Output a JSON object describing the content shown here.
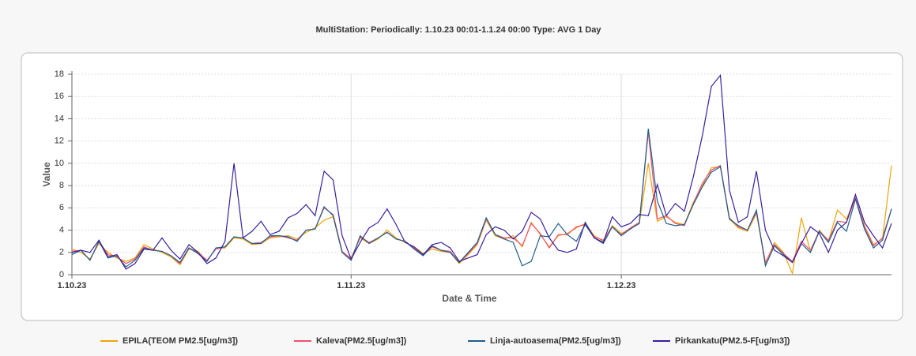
{
  "chart_data": {
    "type": "line",
    "title": "MultiStation:  Periodically: 1.10.23 00:01-1.1.24 00:00  Type: AVG 1 Day",
    "xlabel": "Date & Time",
    "ylabel": "Value",
    "x": [
      "2023-10-01",
      "2023-10-02",
      "2023-10-03",
      "2023-10-04",
      "2023-10-05",
      "2023-10-06",
      "2023-10-07",
      "2023-10-08",
      "2023-10-09",
      "2023-10-10",
      "2023-10-11",
      "2023-10-12",
      "2023-10-13",
      "2023-10-14",
      "2023-10-15",
      "2023-10-16",
      "2023-10-17",
      "2023-10-18",
      "2023-10-19",
      "2023-10-20",
      "2023-10-21",
      "2023-10-22",
      "2023-10-23",
      "2023-10-24",
      "2023-10-25",
      "2023-10-26",
      "2023-10-27",
      "2023-10-28",
      "2023-10-29",
      "2023-10-30",
      "2023-10-31",
      "2023-11-01",
      "2023-11-02",
      "2023-11-03",
      "2023-11-04",
      "2023-11-05",
      "2023-11-06",
      "2023-11-07",
      "2023-11-08",
      "2023-11-09",
      "2023-11-10",
      "2023-11-11",
      "2023-11-12",
      "2023-11-13",
      "2023-11-14",
      "2023-11-15",
      "2023-11-16",
      "2023-11-17",
      "2023-11-18",
      "2023-11-19",
      "2023-11-20",
      "2023-11-21",
      "2023-11-22",
      "2023-11-23",
      "2023-11-24",
      "2023-11-25",
      "2023-11-26",
      "2023-11-27",
      "2023-11-28",
      "2023-11-29",
      "2023-11-30",
      "2023-12-01",
      "2023-12-02",
      "2023-12-03",
      "2023-12-04",
      "2023-12-05",
      "2023-12-06",
      "2023-12-07",
      "2023-12-08",
      "2023-12-09",
      "2023-12-10",
      "2023-12-11",
      "2023-12-12",
      "2023-12-13",
      "2023-12-14",
      "2023-12-15",
      "2023-12-16",
      "2023-12-17",
      "2023-12-18",
      "2023-12-19",
      "2023-12-20",
      "2023-12-21",
      "2023-12-22",
      "2023-12-23",
      "2023-12-24",
      "2023-12-25",
      "2023-12-26",
      "2023-12-27",
      "2023-12-28",
      "2023-12-29",
      "2023-12-30",
      "2023-12-31"
    ],
    "series": [
      {
        "name": "EPILA(TEOM PM2.5[ug/m3])",
        "color": "#f0a30a",
        "values": [
          2.3,
          2.0,
          1.4,
          2.8,
          2.0,
          1.5,
          1.2,
          1.5,
          2.7,
          2.3,
          2.0,
          1.6,
          0.9,
          2.3,
          2.1,
          1.2,
          2.4,
          2.4,
          3.3,
          3.2,
          2.7,
          2.8,
          3.3,
          3.4,
          3.5,
          3.2,
          3.8,
          4.2,
          4.9,
          5.2,
          2.0,
          1.5,
          3.3,
          2.8,
          3.2,
          4.0,
          3.3,
          2.9,
          2.5,
          1.9,
          2.3,
          2.1,
          2.0,
          1.0,
          1.8,
          2.7,
          4.9,
          3.5,
          3.2,
          3.5,
          2.5,
          4.7,
          3.6,
          2.5,
          3.5,
          3.7,
          4.2,
          4.6,
          3.5,
          3.0,
          4.4,
          3.7,
          4.1,
          4.6,
          10.0,
          4.8,
          5.2,
          4.7,
          4.5,
          6.5,
          8.0,
          9.6,
          9.7,
          5.0,
          4.2,
          3.9,
          5.5,
          1.0,
          2.9,
          2.0,
          0.1,
          5.1,
          2.1,
          4.0,
          3.0,
          5.8,
          5.0,
          6.8,
          4.4,
          2.7,
          3.2,
          9.8
        ]
      },
      {
        "name": "Kaleva(PM2.5[ug/m3])",
        "color": "#f0506e",
        "values": [
          2.1,
          2.2,
          1.3,
          3.0,
          1.8,
          1.6,
          1.0,
          1.4,
          2.5,
          2.2,
          2.1,
          1.7,
          1.0,
          2.4,
          2.0,
          1.3,
          2.3,
          2.5,
          3.4,
          3.3,
          2.8,
          2.9,
          3.4,
          3.5,
          3.3,
          3.1,
          4.0,
          4.1,
          6.0,
          5.4,
          2.1,
          1.4,
          3.4,
          2.9,
          3.3,
          3.8,
          3.2,
          3.0,
          2.4,
          1.8,
          2.5,
          2.2,
          2.1,
          1.1,
          1.9,
          2.8,
          5.0,
          3.6,
          3.3,
          3.3,
          2.6,
          4.6,
          3.7,
          2.4,
          3.6,
          3.6,
          4.3,
          4.5,
          3.4,
          3.1,
          4.3,
          3.6,
          4.2,
          4.7,
          12.8,
          5.0,
          5.3,
          4.6,
          4.4,
          6.4,
          8.2,
          9.4,
          9.8,
          5.1,
          4.3,
          4.0,
          5.6,
          1.1,
          2.7,
          1.9,
          1.2,
          3.0,
          2.2,
          3.9,
          3.1,
          4.8,
          4.7,
          6.9,
          4.3,
          2.6,
          3.3,
          5.9
        ]
      },
      {
        "name": "Linja-autoasema(PM2.5[ug/m3])",
        "color": "#1f5f8b",
        "values": [
          1.8,
          2.2,
          1.3,
          3.0,
          1.5,
          1.7,
          0.7,
          1.3,
          2.4,
          2.2,
          2.1,
          1.7,
          1.1,
          2.4,
          1.9,
          1.2,
          2.4,
          2.5,
          3.4,
          3.3,
          2.8,
          2.8,
          3.5,
          3.5,
          3.4,
          3.0,
          4.0,
          4.1,
          6.1,
          5.3,
          2.0,
          1.3,
          3.5,
          2.8,
          3.3,
          3.8,
          3.2,
          3.0,
          2.3,
          1.7,
          2.6,
          2.2,
          2.0,
          1.1,
          2.0,
          2.9,
          5.1,
          3.6,
          3.2,
          2.9,
          0.8,
          1.2,
          3.5,
          3.4,
          4.6,
          3.6,
          3.0,
          4.5,
          3.3,
          2.8,
          4.3,
          3.5,
          4.1,
          4.6,
          13.1,
          6.6,
          4.6,
          4.4,
          4.5,
          6.3,
          7.9,
          9.2,
          9.7,
          5.0,
          4.4,
          4.0,
          5.8,
          0.8,
          2.6,
          1.8,
          1.1,
          2.8,
          2.0,
          3.9,
          2.9,
          4.7,
          3.9,
          6.8,
          4.1,
          2.4,
          3.1,
          5.9
        ]
      },
      {
        "name": "Pirkankatu(PM2.5-F[ug/m3])",
        "color": "#3b1f9e",
        "values": [
          2.0,
          2.2,
          2.0,
          3.1,
          1.6,
          1.8,
          0.5,
          1.0,
          2.3,
          2.2,
          3.3,
          2.2,
          1.4,
          2.7,
          2.0,
          1.0,
          1.5,
          3.0,
          10.0,
          3.3,
          3.9,
          4.8,
          3.6,
          3.9,
          5.1,
          5.5,
          6.3,
          5.3,
          9.3,
          8.5,
          3.5,
          1.4,
          2.9,
          4.2,
          4.7,
          5.9,
          4.5,
          2.9,
          2.5,
          1.8,
          2.7,
          2.9,
          2.4,
          1.2,
          1.5,
          1.8,
          3.6,
          4.3,
          4.0,
          3.2,
          3.9,
          5.6,
          5.0,
          3.3,
          2.2,
          2.0,
          2.3,
          4.7,
          3.3,
          2.9,
          5.2,
          4.3,
          4.6,
          5.4,
          5.3,
          8.1,
          5.3,
          6.4,
          5.7,
          8.8,
          12.5,
          16.9,
          17.9,
          7.6,
          4.7,
          5.2,
          9.3,
          4.0,
          2.2,
          1.7,
          1.1,
          2.8,
          4.3,
          3.7,
          2.0,
          4.0,
          4.7,
          7.2,
          4.7,
          3.5,
          2.4,
          4.6
        ]
      }
    ],
    "xlim": [
      "2023-10-01",
      "2023-12-31"
    ],
    "xticks": [
      {
        "value": "2023-10-01",
        "label": "1.10.23"
      },
      {
        "value": "2023-11-01",
        "label": "1.11.23"
      },
      {
        "value": "2023-12-01",
        "label": "1.12.23"
      }
    ],
    "ylim": [
      0,
      18
    ],
    "yticks": [
      0,
      2,
      4,
      6,
      8,
      10,
      12,
      14,
      16,
      18
    ],
    "grid": true
  }
}
